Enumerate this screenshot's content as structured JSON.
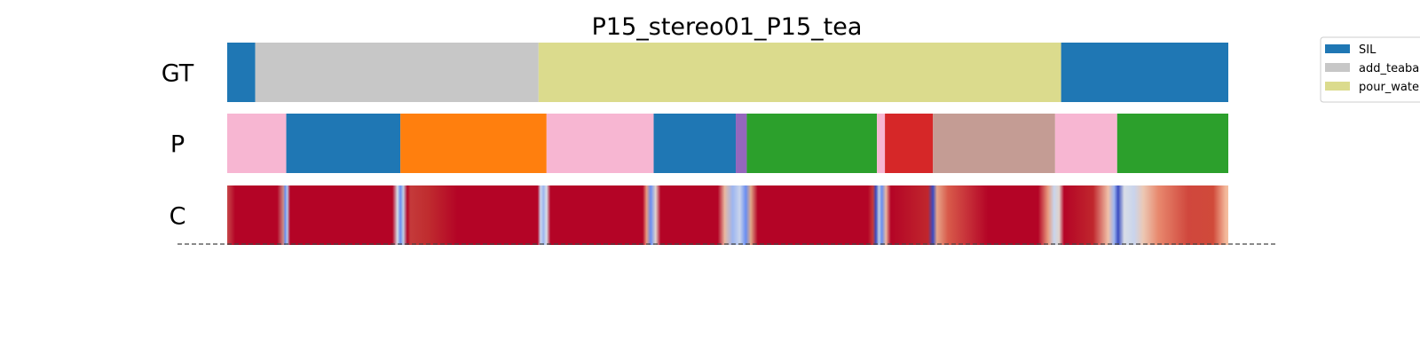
{
  "chart_data": {
    "type": "heatmap",
    "title": "P15_stereo01_P15_tea",
    "x_range": [
      0,
      1
    ],
    "rows": [
      {
        "label": "GT",
        "kind": "segments",
        "segments": [
          {
            "start": 0.0,
            "end": 0.028,
            "color": "#1f77b4"
          },
          {
            "start": 0.028,
            "end": 0.311,
            "color": "#c7c7c7"
          },
          {
            "start": 0.311,
            "end": 0.833,
            "color": "#dbdb8d"
          },
          {
            "start": 0.833,
            "end": 1.0,
            "color": "#1f77b4"
          }
        ]
      },
      {
        "label": "P",
        "kind": "segments",
        "segments": [
          {
            "start": 0.0,
            "end": 0.059,
            "color": "#f7b6d2"
          },
          {
            "start": 0.059,
            "end": 0.173,
            "color": "#1f77b4"
          },
          {
            "start": 0.173,
            "end": 0.319,
            "color": "#ff7f0e"
          },
          {
            "start": 0.319,
            "end": 0.426,
            "color": "#f7b6d2"
          },
          {
            "start": 0.426,
            "end": 0.508,
            "color": "#1f77b4"
          },
          {
            "start": 0.508,
            "end": 0.519,
            "color": "#9467bd"
          },
          {
            "start": 0.519,
            "end": 0.649,
            "color": "#2ca02c"
          },
          {
            "start": 0.649,
            "end": 0.657,
            "color": "#f7b6d2"
          },
          {
            "start": 0.657,
            "end": 0.705,
            "color": "#d62728"
          },
          {
            "start": 0.705,
            "end": 0.827,
            "color": "#c49c94"
          },
          {
            "start": 0.827,
            "end": 0.889,
            "color": "#f7b6d2"
          },
          {
            "start": 0.889,
            "end": 1.0,
            "color": "#2ca02c"
          }
        ]
      },
      {
        "label": "C",
        "kind": "gradient",
        "stops": [
          {
            "x": 0.0,
            "color": "#c7484a"
          },
          {
            "x": 0.008,
            "color": "#b40426"
          },
          {
            "x": 0.05,
            "color": "#b40426"
          },
          {
            "x": 0.056,
            "color": "#c98a86"
          },
          {
            "x": 0.058,
            "color": "#6a8ef0"
          },
          {
            "x": 0.06,
            "color": "#b4c6ea"
          },
          {
            "x": 0.063,
            "color": "#b40426"
          },
          {
            "x": 0.165,
            "color": "#b40426"
          },
          {
            "x": 0.17,
            "color": "#d6dce4"
          },
          {
            "x": 0.173,
            "color": "#6a8ef0"
          },
          {
            "x": 0.176,
            "color": "#c0cde0"
          },
          {
            "x": 0.18,
            "color": "#b40426"
          },
          {
            "x": 0.183,
            "color": "#c43a3a"
          },
          {
            "x": 0.2,
            "color": "#c02d2f"
          },
          {
            "x": 0.23,
            "color": "#b40426"
          },
          {
            "x": 0.31,
            "color": "#b40426"
          },
          {
            "x": 0.313,
            "color": "#c9d4ec"
          },
          {
            "x": 0.316,
            "color": "#9db6f0"
          },
          {
            "x": 0.319,
            "color": "#d8dde6"
          },
          {
            "x": 0.323,
            "color": "#b40426"
          },
          {
            "x": 0.415,
            "color": "#b40426"
          },
          {
            "x": 0.419,
            "color": "#e89c80"
          },
          {
            "x": 0.423,
            "color": "#6a8ef0"
          },
          {
            "x": 0.428,
            "color": "#e0d3cc"
          },
          {
            "x": 0.433,
            "color": "#b40426"
          },
          {
            "x": 0.49,
            "color": "#b40426"
          },
          {
            "x": 0.497,
            "color": "#e8b8a0"
          },
          {
            "x": 0.505,
            "color": "#9db6f0"
          },
          {
            "x": 0.512,
            "color": "#c9d4ec"
          },
          {
            "x": 0.518,
            "color": "#6a8ef0"
          },
          {
            "x": 0.523,
            "color": "#e0a888"
          },
          {
            "x": 0.53,
            "color": "#b40426"
          },
          {
            "x": 0.64,
            "color": "#b40426"
          },
          {
            "x": 0.645,
            "color": "#c43a3a"
          },
          {
            "x": 0.648,
            "color": "#3b4cc0"
          },
          {
            "x": 0.651,
            "color": "#c0cde0"
          },
          {
            "x": 0.654,
            "color": "#6a8ef0"
          },
          {
            "x": 0.658,
            "color": "#e8b8a0"
          },
          {
            "x": 0.663,
            "color": "#b40426"
          },
          {
            "x": 0.7,
            "color": "#c0272d"
          },
          {
            "x": 0.705,
            "color": "#3b4cc0"
          },
          {
            "x": 0.709,
            "color": "#e6a48a"
          },
          {
            "x": 0.72,
            "color": "#d85a4a"
          },
          {
            "x": 0.76,
            "color": "#b40426"
          },
          {
            "x": 0.81,
            "color": "#b40426"
          },
          {
            "x": 0.82,
            "color": "#e89c80"
          },
          {
            "x": 0.826,
            "color": "#c9d4ec"
          },
          {
            "x": 0.831,
            "color": "#e0d3cc"
          },
          {
            "x": 0.836,
            "color": "#b40426"
          },
          {
            "x": 0.865,
            "color": "#c0272d"
          },
          {
            "x": 0.88,
            "color": "#f0c0a8"
          },
          {
            "x": 0.886,
            "color": "#9db6f0"
          },
          {
            "x": 0.89,
            "color": "#3b4cc0"
          },
          {
            "x": 0.896,
            "color": "#d8dde6"
          },
          {
            "x": 0.906,
            "color": "#c9d4ec"
          },
          {
            "x": 0.915,
            "color": "#ecc8b4"
          },
          {
            "x": 0.93,
            "color": "#e8896e"
          },
          {
            "x": 0.96,
            "color": "#d0473d"
          },
          {
            "x": 0.985,
            "color": "#d04a3a"
          },
          {
            "x": 0.997,
            "color": "#f3b598"
          },
          {
            "x": 1.0,
            "color": "#f4c0a0"
          }
        ]
      }
    ],
    "legend": {
      "position": "top-right",
      "entries": [
        {
          "label": "SIL",
          "color": "#1f77b4"
        },
        {
          "label": "add_teabag",
          "color": "#c7c7c7"
        },
        {
          "label": "pour_water",
          "color": "#dbdb8d"
        }
      ]
    }
  }
}
